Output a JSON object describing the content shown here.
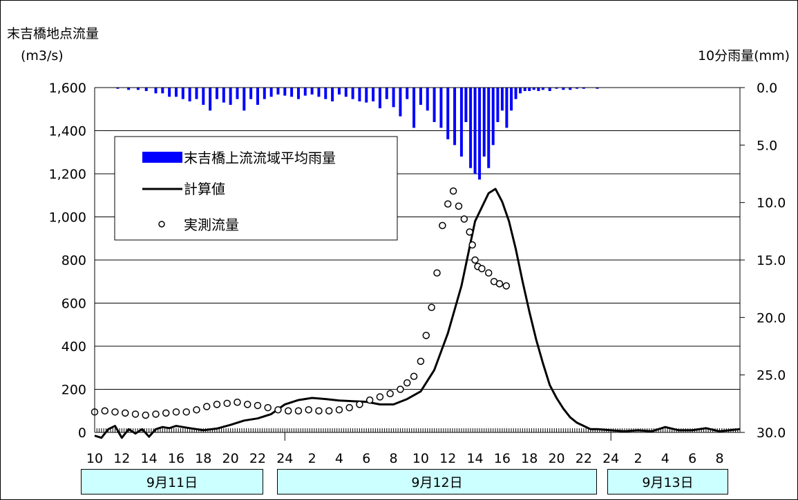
{
  "chart_data": {
    "type": "line",
    "y_left": {
      "title_line1": "末吉橋地点流量",
      "title_line2": "(m3/s)",
      "ticks": [
        0,
        200,
        400,
        600,
        800,
        1000,
        1200,
        1400,
        1600
      ],
      "tick_labels": [
        "0",
        "200",
        "400",
        "600",
        "800",
        "1,000",
        "1,200",
        "1,400",
        "1,600"
      ],
      "ylim": [
        0,
        1600
      ]
    },
    "y_right": {
      "title": "10分雨量(mm)",
      "ticks": [
        0,
        5,
        10,
        15,
        20,
        25,
        30
      ],
      "tick_labels": [
        "0.0",
        "5.0",
        "10.0",
        "15.0",
        "20.0",
        "25.0",
        "30.0"
      ],
      "ylim": [
        0,
        30
      ],
      "inverted": true
    },
    "x": {
      "hour_labels": [
        "10",
        "12",
        "14",
        "16",
        "18",
        "20",
        "22",
        "24",
        "2",
        "4",
        "6",
        "8",
        "10",
        "12",
        "14",
        "16",
        "18",
        "20",
        "22",
        "24",
        "2",
        "4",
        "6",
        "8"
      ],
      "date_labels": [
        "9月11日",
        "9月12日",
        "9月13日"
      ],
      "xlim_hours": [
        0,
        47.5
      ]
    },
    "legend": {
      "position": "upper-left",
      "items": [
        "末吉橋上流流域平均雨量",
        "計算値",
        "実測流量"
      ]
    },
    "grid": true,
    "series": [
      {
        "name": "末吉橋上流流域平均雨量",
        "kind": "bar",
        "color": "#0000ff",
        "axis": "right",
        "x_hours": [
          1.7,
          2.5,
          3.2,
          3.8,
          4.5,
          5,
          5.5,
          6,
          6.5,
          7,
          7.5,
          8,
          8.5,
          9,
          9.5,
          10,
          10.5,
          11,
          11.5,
          12,
          12.5,
          13,
          13.5,
          14,
          14.5,
          15,
          15.5,
          16,
          16.5,
          17,
          17.5,
          18,
          18.5,
          19,
          19.5,
          20,
          20.5,
          21,
          21.5,
          22,
          22.5,
          23,
          23.5,
          24,
          24.5,
          25,
          25.5,
          26,
          26.5,
          27,
          27.33,
          27.67,
          28,
          28.33,
          28.67,
          29,
          29.33,
          29.67,
          30,
          30.33,
          30.67,
          31,
          31.33,
          31.67,
          32,
          32.33,
          32.67,
          33,
          33.5,
          34,
          34.5,
          35,
          35.5,
          36,
          37
        ],
        "values": [
          0.1,
          0.2,
          0.2,
          0.3,
          0.5,
          0.5,
          0.8,
          0.8,
          1.0,
          1.2,
          1.0,
          1.5,
          2.0,
          1.0,
          1.3,
          1.5,
          1.0,
          2.0,
          1.0,
          1.5,
          1.0,
          0.8,
          0.6,
          0.7,
          0.8,
          1.0,
          0.7,
          0.6,
          0.8,
          1.0,
          1.2,
          0.6,
          0.8,
          1.0,
          1.2,
          1.3,
          1.2,
          1.8,
          1.0,
          1.7,
          2.5,
          1.0,
          3.5,
          1.5,
          2.0,
          3.0,
          3.5,
          4.5,
          5.0,
          6.0,
          3.0,
          7.0,
          7.5,
          8.0,
          6.0,
          7.0,
          5.0,
          3.0,
          2.0,
          3.5,
          2.0,
          1.0,
          0.5,
          0.3,
          0.3,
          0.2,
          0.3,
          0.2,
          0.3,
          0.1,
          0.2,
          0.2,
          0.1,
          0.1,
          0.1
        ]
      },
      {
        "name": "計算値",
        "kind": "line",
        "color": "#000000",
        "axis": "left",
        "x_hours": [
          0,
          0.5,
          1,
          1.5,
          2,
          2.5,
          3,
          3.5,
          4,
          4.5,
          5,
          5.5,
          6,
          6.5,
          7,
          7.5,
          8,
          9,
          10,
          11,
          12,
          13,
          14,
          15,
          16,
          17,
          18,
          19,
          20,
          21,
          22,
          23,
          24,
          25,
          26,
          27,
          28,
          29,
          29.5,
          30,
          30.5,
          31,
          31.5,
          32,
          32.5,
          33,
          33.5,
          34,
          34.5,
          35,
          35.5,
          36,
          36.5,
          37,
          38,
          39,
          40,
          41,
          42,
          43,
          44,
          45,
          46,
          47,
          47.5
        ],
        "values": [
          -15,
          -25,
          15,
          30,
          -25,
          15,
          -5,
          15,
          -20,
          15,
          25,
          20,
          30,
          25,
          20,
          15,
          10,
          18,
          35,
          55,
          65,
          85,
          130,
          150,
          160,
          155,
          148,
          145,
          142,
          130,
          130,
          155,
          190,
          290,
          460,
          680,
          980,
          1110,
          1130,
          1070,
          980,
          850,
          700,
          560,
          430,
          320,
          220,
          160,
          110,
          70,
          45,
          30,
          15,
          15,
          10,
          5,
          10,
          5,
          25,
          10,
          10,
          20,
          5,
          12,
          15
        ]
      },
      {
        "name": "実測流量",
        "kind": "scatter",
        "color": "#000000",
        "axis": "left",
        "x_hours": [
          0,
          0.75,
          1.5,
          2.25,
          3,
          3.75,
          4.5,
          5.25,
          6,
          6.75,
          7.5,
          8.25,
          9,
          9.75,
          10.5,
          11.25,
          12,
          12.75,
          13.5,
          14.25,
          15,
          15.75,
          16.5,
          17.25,
          18,
          18.75,
          19.5,
          20.25,
          21,
          21.75,
          22.5,
          23,
          23.5,
          24,
          24.4,
          24.8,
          25.2,
          25.6,
          26,
          26.4,
          26.8,
          27.2,
          27.6,
          27.8,
          28,
          28.2,
          28.5,
          29,
          29.4,
          29.8,
          30.3
        ],
        "values": [
          95,
          100,
          95,
          90,
          85,
          80,
          85,
          90,
          95,
          95,
          105,
          120,
          130,
          135,
          140,
          130,
          125,
          115,
          105,
          100,
          100,
          105,
          100,
          100,
          105,
          115,
          130,
          150,
          165,
          180,
          200,
          230,
          260,
          330,
          450,
          580,
          740,
          960,
          1060,
          1120,
          1050,
          990,
          930,
          870,
          800,
          770,
          760,
          740,
          700,
          690,
          680
        ]
      }
    ]
  }
}
